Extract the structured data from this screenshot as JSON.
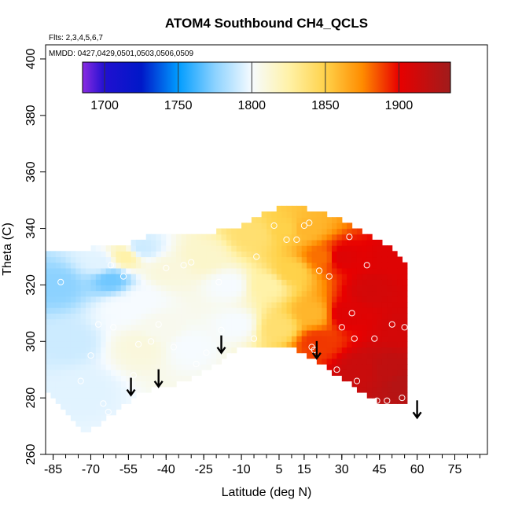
{
  "chart_data": {
    "type": "heatmap",
    "title": "ATOM4 Southbound CH4_QCLS",
    "flights_label": "Flts: 2,3,4,5,6,7",
    "dates_label": "MMDD: 0427,0429,0501,0503,0506,0509",
    "xlabel": "Latitude (deg N)",
    "ylabel": "Theta (C)",
    "xlim": [
      -88,
      88
    ],
    "ylim": [
      260,
      405
    ],
    "x_ticks": [
      -85,
      -70,
      -55,
      -40,
      -25,
      -10,
      5,
      15,
      30,
      45,
      60,
      75
    ],
    "y_ticks": [
      260,
      280,
      300,
      320,
      340,
      360,
      380,
      400
    ],
    "colorbar": {
      "min": 1685,
      "max": 1935,
      "ticks": [
        1700,
        1750,
        1800,
        1850,
        1900
      ],
      "stops": [
        {
          "value": 1685,
          "color": "#8a2be2"
        },
        {
          "value": 1700,
          "color": "#2010d0"
        },
        {
          "value": 1725,
          "color": "#0018c8"
        },
        {
          "value": 1750,
          "color": "#009cff"
        },
        {
          "value": 1775,
          "color": "#8cd2ff"
        },
        {
          "value": 1800,
          "color": "#f6fbff"
        },
        {
          "value": 1825,
          "color": "#fff2a8"
        },
        {
          "value": 1850,
          "color": "#ffd24a"
        },
        {
          "value": 1875,
          "color": "#ff8c00"
        },
        {
          "value": 1900,
          "color": "#e80000"
        },
        {
          "value": 1935,
          "color": "#a01c1c"
        }
      ]
    },
    "field_lat_range": [
      -88,
      56
    ],
    "top_boundary": [
      [
        -88,
        330
      ],
      [
        -70,
        332
      ],
      [
        -55,
        334
      ],
      [
        -45,
        337
      ],
      [
        -30,
        336
      ],
      [
        -10,
        340
      ],
      [
        0,
        345
      ],
      [
        10,
        348
      ],
      [
        20,
        345
      ],
      [
        30,
        342
      ],
      [
        40,
        337
      ],
      [
        50,
        332
      ],
      [
        56,
        327
      ]
    ],
    "bottom_boundary": [
      [
        -88,
        285
      ],
      [
        -72,
        268
      ],
      [
        -60,
        276
      ],
      [
        -50,
        283
      ],
      [
        -35,
        286
      ],
      [
        -20,
        293
      ],
      [
        -10,
        299
      ],
      [
        0,
        300
      ],
      [
        10,
        299
      ],
      [
        20,
        294
      ],
      [
        30,
        288
      ],
      [
        40,
        282
      ],
      [
        46,
        278
      ],
      [
        56,
        278
      ]
    ],
    "control_points": [
      {
        "lat": -83,
        "theta": 320,
        "ch4": 1775
      },
      {
        "lat": -78,
        "theta": 300,
        "ch4": 1790
      },
      {
        "lat": -72,
        "theta": 283,
        "ch4": 1795
      },
      {
        "lat": -66,
        "theta": 328,
        "ch4": 1795
      },
      {
        "lat": -62,
        "theta": 322,
        "ch4": 1770
      },
      {
        "lat": -58,
        "theta": 312,
        "ch4": 1800
      },
      {
        "lat": -56,
        "theta": 330,
        "ch4": 1825
      },
      {
        "lat": -50,
        "theta": 333,
        "ch4": 1790
      },
      {
        "lat": -50,
        "theta": 315,
        "ch4": 1800
      },
      {
        "lat": -50,
        "theta": 298,
        "ch4": 1810
      },
      {
        "lat": -42,
        "theta": 305,
        "ch4": 1805
      },
      {
        "lat": -40,
        "theta": 325,
        "ch4": 1810
      },
      {
        "lat": -30,
        "theta": 298,
        "ch4": 1800
      },
      {
        "lat": -25,
        "theta": 330,
        "ch4": 1815
      },
      {
        "lat": -15,
        "theta": 320,
        "ch4": 1800
      },
      {
        "lat": -12,
        "theta": 306,
        "ch4": 1800
      },
      {
        "lat": -5,
        "theta": 338,
        "ch4": 1840
      },
      {
        "lat": 0,
        "theta": 320,
        "ch4": 1825
      },
      {
        "lat": 5,
        "theta": 305,
        "ch4": 1840
      },
      {
        "lat": 8,
        "theta": 340,
        "ch4": 1850
      },
      {
        "lat": 10,
        "theta": 325,
        "ch4": 1850
      },
      {
        "lat": 15,
        "theta": 340,
        "ch4": 1860
      },
      {
        "lat": 18,
        "theta": 310,
        "ch4": 1860
      },
      {
        "lat": 20,
        "theta": 300,
        "ch4": 1890
      },
      {
        "lat": 22,
        "theta": 330,
        "ch4": 1880
      },
      {
        "lat": 30,
        "theta": 330,
        "ch4": 1905
      },
      {
        "lat": 32,
        "theta": 310,
        "ch4": 1905
      },
      {
        "lat": 38,
        "theta": 290,
        "ch4": 1915
      },
      {
        "lat": 42,
        "theta": 318,
        "ch4": 1910
      },
      {
        "lat": 48,
        "theta": 290,
        "ch4": 1920
      },
      {
        "lat": 50,
        "theta": 330,
        "ch4": 1905
      },
      {
        "lat": 55,
        "theta": 305,
        "ch4": 1910
      },
      {
        "lat": 55,
        "theta": 285,
        "ch4": 1925
      }
    ],
    "observations": [
      [
        -82,
        321
      ],
      [
        -74,
        286
      ],
      [
        -70,
        295
      ],
      [
        -67,
        306
      ],
      [
        -65,
        278
      ],
      [
        -63,
        275
      ],
      [
        -62,
        327
      ],
      [
        -61,
        305
      ],
      [
        -57,
        323
      ],
      [
        -53,
        288
      ],
      [
        -51,
        299
      ],
      [
        -46,
        300
      ],
      [
        -43,
        306
      ],
      [
        -40,
        326
      ],
      [
        -37,
        298
      ],
      [
        -33,
        327
      ],
      [
        -30,
        328
      ],
      [
        -28,
        292
      ],
      [
        -24,
        296
      ],
      [
        -19,
        321
      ],
      [
        -18,
        304
      ],
      [
        -5,
        301
      ],
      [
        -4,
        330
      ],
      [
        3,
        341
      ],
      [
        8,
        336
      ],
      [
        12,
        336
      ],
      [
        15,
        341
      ],
      [
        17,
        342
      ],
      [
        18,
        298
      ],
      [
        19,
        297
      ],
      [
        21,
        325
      ],
      [
        25,
        323
      ],
      [
        28,
        290
      ],
      [
        30,
        305
      ],
      [
        33,
        337
      ],
      [
        34,
        310
      ],
      [
        35,
        301
      ],
      [
        36,
        286
      ],
      [
        40,
        327
      ],
      [
        43,
        301
      ],
      [
        44,
        279
      ],
      [
        48,
        279
      ],
      [
        50,
        306
      ],
      [
        54,
        280
      ],
      [
        55,
        305
      ]
    ],
    "arrows": [
      {
        "lat": -54,
        "theta": 281
      },
      {
        "lat": -43,
        "theta": 284
      },
      {
        "lat": -18,
        "theta": 296
      },
      {
        "lat": 20,
        "theta": 294
      },
      {
        "lat": 60,
        "theta": 273
      }
    ]
  }
}
